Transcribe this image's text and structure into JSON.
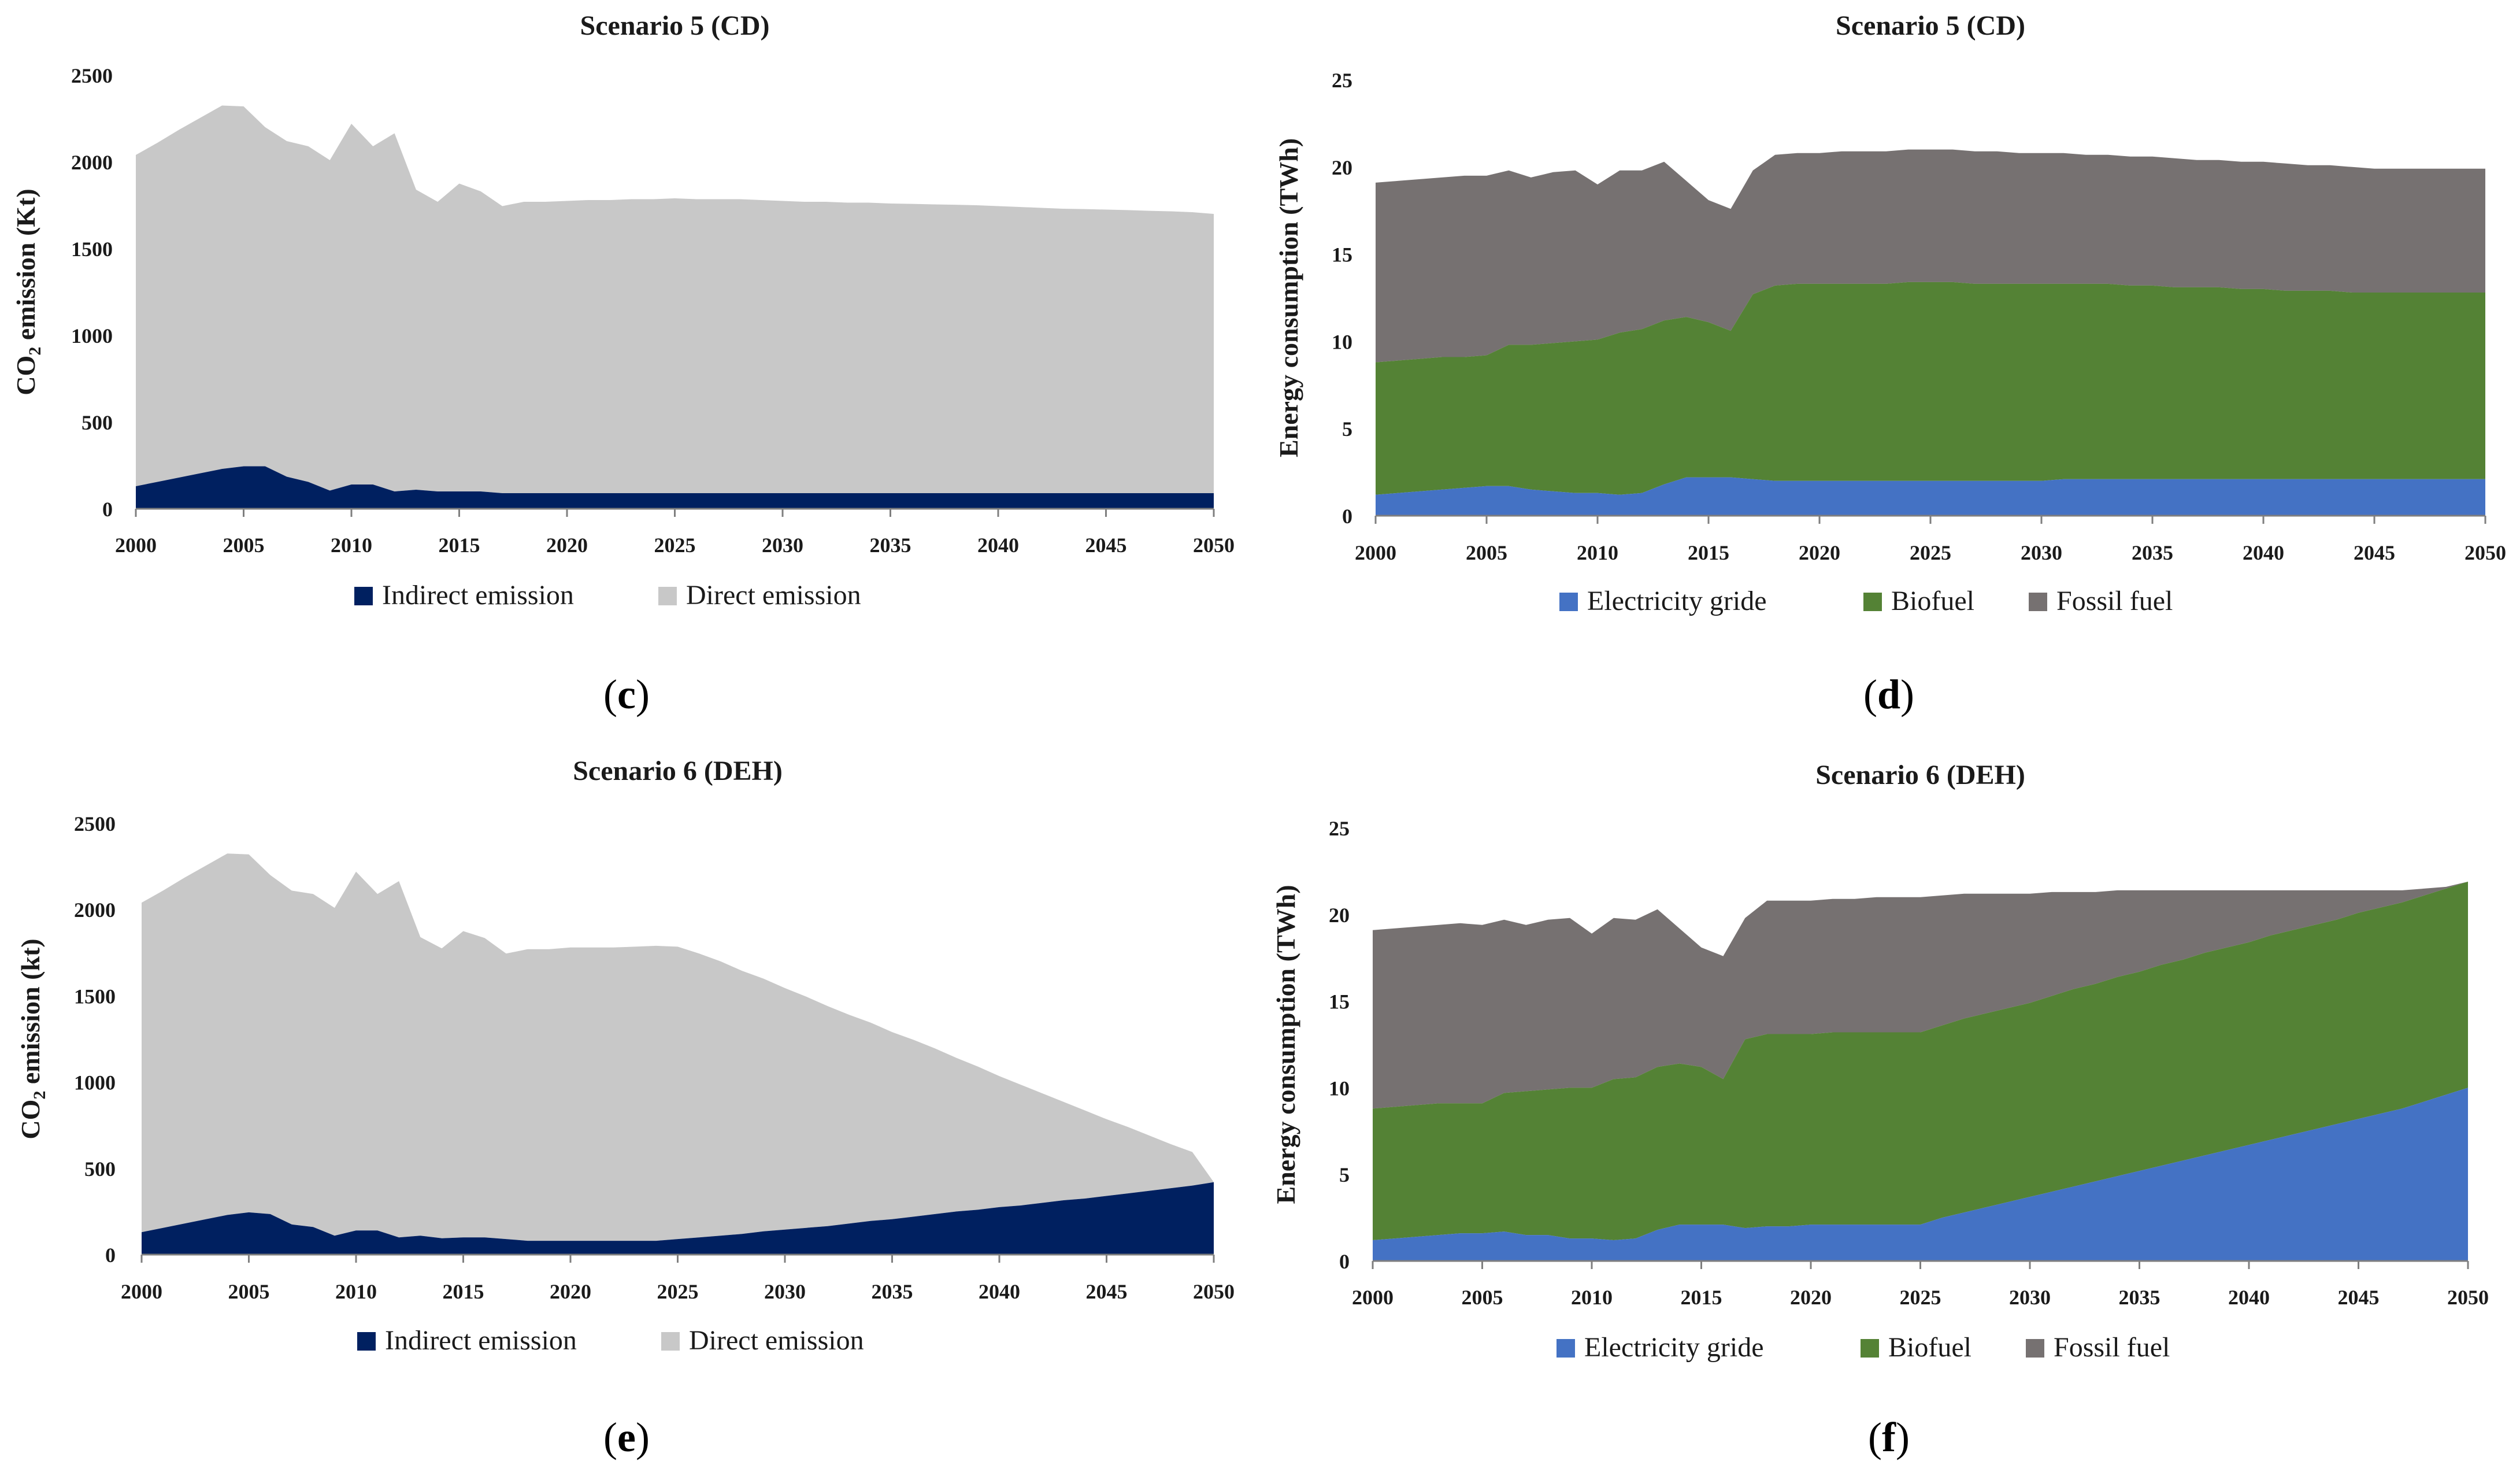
{
  "panels": {
    "c": "c",
    "d": "d",
    "e": "e",
    "f": "f"
  },
  "chart_data": [
    {
      "id": "c",
      "type": "area",
      "stacked": true,
      "title": "Scenario 5 (CD)",
      "ylabel": "CO2 emission (Kt)",
      "ylabel_main": "CO",
      "ylabel_sub": "2",
      "ylabel_rest": " emission (Kt)",
      "xlabel": "",
      "x": [
        2000,
        2001,
        2002,
        2003,
        2004,
        2005,
        2006,
        2007,
        2008,
        2009,
        2010,
        2011,
        2012,
        2013,
        2014,
        2015,
        2016,
        2017,
        2018,
        2019,
        2020,
        2021,
        2022,
        2023,
        2024,
        2025,
        2026,
        2027,
        2028,
        2029,
        2030,
        2031,
        2032,
        2033,
        2034,
        2035,
        2036,
        2037,
        2038,
        2039,
        2040,
        2041,
        2042,
        2043,
        2044,
        2045,
        2046,
        2047,
        2048,
        2049,
        2050
      ],
      "xticks": [
        "2000",
        "2005",
        "2010",
        "2015",
        "2020",
        "2025",
        "2030",
        "2035",
        "2040",
        "2045",
        "2050"
      ],
      "yticks": [
        "0",
        "500",
        "1000",
        "1500",
        "2000",
        "2500"
      ],
      "ylim": [
        0,
        2500
      ],
      "series": [
        {
          "name": "Indirect emission",
          "color": "#002060",
          "values": [
            130,
            155,
            180,
            205,
            230,
            245,
            245,
            185,
            155,
            105,
            140,
            140,
            100,
            110,
            100,
            100,
            100,
            90,
            90,
            90,
            90,
            90,
            90,
            90,
            90,
            90,
            90,
            90,
            90,
            90,
            90,
            90,
            90,
            90,
            90,
            90,
            90,
            90,
            90,
            90,
            90,
            90,
            90,
            90,
            90,
            90,
            90,
            90,
            90,
            90,
            90
          ]
        },
        {
          "name": "Direct emission",
          "color": "#c8c8c8",
          "values": [
            1910,
            1955,
            2005,
            2050,
            2095,
            2075,
            1955,
            1935,
            1935,
            1905,
            2080,
            1950,
            2065,
            1730,
            1670,
            1775,
            1730,
            1655,
            1680,
            1680,
            1685,
            1690,
            1690,
            1695,
            1695,
            1700,
            1695,
            1695,
            1695,
            1690,
            1685,
            1680,
            1680,
            1675,
            1675,
            1670,
            1668,
            1665,
            1663,
            1660,
            1655,
            1650,
            1645,
            1640,
            1638,
            1635,
            1632,
            1628,
            1625,
            1620,
            1610
          ]
        }
      ],
      "legend": "bottom"
    },
    {
      "id": "d",
      "type": "area",
      "stacked": true,
      "title": "Scenario 5 (CD)",
      "ylabel": "Energy consumption (TWh)",
      "xlabel": "",
      "x": [
        2000,
        2001,
        2002,
        2003,
        2004,
        2005,
        2006,
        2007,
        2008,
        2009,
        2010,
        2011,
        2012,
        2013,
        2014,
        2015,
        2016,
        2017,
        2018,
        2019,
        2020,
        2021,
        2022,
        2023,
        2024,
        2025,
        2026,
        2027,
        2028,
        2029,
        2030,
        2031,
        2032,
        2033,
        2034,
        2035,
        2036,
        2037,
        2038,
        2039,
        2040,
        2041,
        2042,
        2043,
        2044,
        2045,
        2046,
        2047,
        2048,
        2049,
        2050
      ],
      "xticks": [
        "2000",
        "2005",
        "2010",
        "2015",
        "2020",
        "2025",
        "2030",
        "2035",
        "2040",
        "2045",
        "2050"
      ],
      "yticks": [
        "0",
        "5",
        "10",
        "15",
        "20",
        "25"
      ],
      "ylim": [
        0,
        25
      ],
      "series": [
        {
          "name": "Electricity gride",
          "color": "#4472c4",
          "values": [
            1.2,
            1.3,
            1.4,
            1.5,
            1.6,
            1.7,
            1.7,
            1.5,
            1.4,
            1.3,
            1.3,
            1.2,
            1.3,
            1.8,
            2.2,
            2.2,
            2.2,
            2.1,
            2.0,
            2.0,
            2.0,
            2.0,
            2.0,
            2.0,
            2.0,
            2.0,
            2.0,
            2.0,
            2.0,
            2.0,
            2.0,
            2.1,
            2.1,
            2.1,
            2.1,
            2.1,
            2.1,
            2.1,
            2.1,
            2.1,
            2.1,
            2.1,
            2.1,
            2.1,
            2.1,
            2.1,
            2.1,
            2.1,
            2.1,
            2.1,
            2.1
          ]
        },
        {
          "name": "Biofuel",
          "color": "#548235",
          "values": [
            7.6,
            7.6,
            7.6,
            7.6,
            7.5,
            7.5,
            8.1,
            8.3,
            8.5,
            8.7,
            8.8,
            9.3,
            9.4,
            9.4,
            9.2,
            8.9,
            8.4,
            10.6,
            11.2,
            11.3,
            11.3,
            11.3,
            11.3,
            11.3,
            11.4,
            11.4,
            11.4,
            11.3,
            11.3,
            11.3,
            11.3,
            11.2,
            11.2,
            11.2,
            11.1,
            11.1,
            11.0,
            11.0,
            11.0,
            10.9,
            10.9,
            10.8,
            10.8,
            10.8,
            10.7,
            10.7,
            10.7,
            10.7,
            10.7,
            10.7,
            10.7
          ]
        },
        {
          "name": "Fossil fuel",
          "color": "#767171",
          "values": [
            10.3,
            10.3,
            10.3,
            10.3,
            10.4,
            10.3,
            10.0,
            9.6,
            9.8,
            9.8,
            8.9,
            9.3,
            9.1,
            9.1,
            7.8,
            7.0,
            7.0,
            7.1,
            7.5,
            7.5,
            7.5,
            7.6,
            7.6,
            7.6,
            7.6,
            7.6,
            7.6,
            7.6,
            7.6,
            7.5,
            7.5,
            7.5,
            7.4,
            7.4,
            7.4,
            7.4,
            7.4,
            7.3,
            7.3,
            7.3,
            7.3,
            7.3,
            7.2,
            7.2,
            7.2,
            7.1,
            7.1,
            7.1,
            7.1,
            7.1,
            7.1
          ]
        }
      ],
      "legend": "bottom"
    },
    {
      "id": "e",
      "type": "area",
      "stacked": true,
      "title": "Scenario 6 (DEH)",
      "ylabel": "CO2 emission (kt)",
      "ylabel_main": "CO",
      "ylabel_sub": "2",
      "ylabel_rest": " emission (kt)",
      "xlabel": "",
      "x": [
        2000,
        2001,
        2002,
        2003,
        2004,
        2005,
        2006,
        2007,
        2008,
        2009,
        2010,
        2011,
        2012,
        2013,
        2014,
        2015,
        2016,
        2017,
        2018,
        2019,
        2020,
        2021,
        2022,
        2023,
        2024,
        2025,
        2026,
        2027,
        2028,
        2029,
        2030,
        2031,
        2032,
        2033,
        2034,
        2035,
        2036,
        2037,
        2038,
        2039,
        2040,
        2041,
        2042,
        2043,
        2044,
        2045,
        2046,
        2047,
        2048,
        2049,
        2050
      ],
      "xticks": [
        "2000",
        "2005",
        "2010",
        "2015",
        "2020",
        "2025",
        "2030",
        "2035",
        "2040",
        "2045",
        "2050"
      ],
      "yticks": [
        "0",
        "500",
        "1000",
        "1500",
        "2000",
        "2500"
      ],
      "ylim": [
        0,
        2500
      ],
      "series": [
        {
          "name": "Indirect emission",
          "color": "#002060",
          "values": [
            130,
            155,
            180,
            205,
            230,
            245,
            235,
            175,
            160,
            110,
            140,
            140,
            100,
            110,
            95,
            100,
            100,
            90,
            80,
            80,
            80,
            80,
            80,
            80,
            80,
            90,
            100,
            110,
            120,
            135,
            145,
            155,
            165,
            180,
            195,
            205,
            220,
            235,
            250,
            260,
            275,
            285,
            300,
            315,
            325,
            340,
            355,
            370,
            385,
            400,
            420
          ]
        },
        {
          "name": "Direct emission",
          "color": "#c8c8c8",
          "values": [
            1910,
            1955,
            2005,
            2050,
            2095,
            2075,
            1965,
            1935,
            1930,
            1900,
            2080,
            1950,
            2065,
            1730,
            1680,
            1775,
            1735,
            1655,
            1690,
            1690,
            1700,
            1700,
            1700,
            1705,
            1710,
            1695,
            1645,
            1590,
            1525,
            1465,
            1400,
            1340,
            1275,
            1210,
            1150,
            1085,
            1025,
            960,
            890,
            830,
            760,
            700,
            635,
            570,
            510,
            445,
            385,
            320,
            255,
            195,
            0
          ]
        }
      ],
      "legend": "bottom"
    },
    {
      "id": "f",
      "type": "area",
      "stacked": true,
      "title": "Scenario 6 (DEH)",
      "ylabel": "Energy consumption (TWh)",
      "xlabel": "",
      "x": [
        2000,
        2001,
        2002,
        2003,
        2004,
        2005,
        2006,
        2007,
        2008,
        2009,
        2010,
        2011,
        2012,
        2013,
        2014,
        2015,
        2016,
        2017,
        2018,
        2019,
        2020,
        2021,
        2022,
        2023,
        2024,
        2025,
        2026,
        2027,
        2028,
        2029,
        2030,
        2031,
        2032,
        2033,
        2034,
        2035,
        2036,
        2037,
        2038,
        2039,
        2040,
        2041,
        2042,
        2043,
        2044,
        2045,
        2046,
        2047,
        2048,
        2049,
        2050
      ],
      "xticks": [
        "2000",
        "2005",
        "2010",
        "2015",
        "2020",
        "2025",
        "2030",
        "2035",
        "2040",
        "2045",
        "2050"
      ],
      "yticks": [
        "0",
        "5",
        "10",
        "15",
        "20",
        "25"
      ],
      "ylim": [
        0,
        25
      ],
      "series": [
        {
          "name": "Electricity gride",
          "color": "#4472c4",
          "values": [
            1.2,
            1.3,
            1.4,
            1.5,
            1.6,
            1.6,
            1.7,
            1.5,
            1.5,
            1.3,
            1.3,
            1.2,
            1.3,
            1.8,
            2.1,
            2.1,
            2.1,
            1.9,
            2.0,
            2.0,
            2.1,
            2.1,
            2.1,
            2.1,
            2.1,
            2.1,
            2.5,
            2.8,
            3.1,
            3.4,
            3.7,
            4.0,
            4.3,
            4.6,
            4.9,
            5.2,
            5.5,
            5.8,
            6.1,
            6.4,
            6.7,
            7.0,
            7.3,
            7.6,
            7.9,
            8.2,
            8.5,
            8.8,
            9.2,
            9.6,
            10.0
          ]
        },
        {
          "name": "Biofuel",
          "color": "#548235",
          "values": [
            7.6,
            7.6,
            7.6,
            7.6,
            7.5,
            7.5,
            8.0,
            8.3,
            8.4,
            8.7,
            8.7,
            9.3,
            9.3,
            9.4,
            9.3,
            9.1,
            8.4,
            10.9,
            11.1,
            11.1,
            11.0,
            11.1,
            11.1,
            11.1,
            11.1,
            11.1,
            11.1,
            11.2,
            11.2,
            11.2,
            11.2,
            11.3,
            11.4,
            11.4,
            11.5,
            11.5,
            11.6,
            11.6,
            11.7,
            11.7,
            11.7,
            11.8,
            11.8,
            11.8,
            11.8,
            11.9,
            11.9,
            11.9,
            11.9,
            11.9,
            11.9
          ]
        },
        {
          "name": "Fossil fuel",
          "color": "#767171",
          "values": [
            10.3,
            10.3,
            10.3,
            10.3,
            10.4,
            10.3,
            10.0,
            9.6,
            9.8,
            9.8,
            8.9,
            9.3,
            9.1,
            9.1,
            7.8,
            6.9,
            7.1,
            7.0,
            7.7,
            7.7,
            7.7,
            7.7,
            7.7,
            7.8,
            7.8,
            7.8,
            7.5,
            7.2,
            6.9,
            6.6,
            6.3,
            6.0,
            5.6,
            5.3,
            5.0,
            4.7,
            4.3,
            4.0,
            3.6,
            3.3,
            3.0,
            2.6,
            2.3,
            2.0,
            1.7,
            1.3,
            1.0,
            0.7,
            0.4,
            0.1,
            0.0
          ]
        }
      ],
      "legend": "bottom"
    }
  ]
}
